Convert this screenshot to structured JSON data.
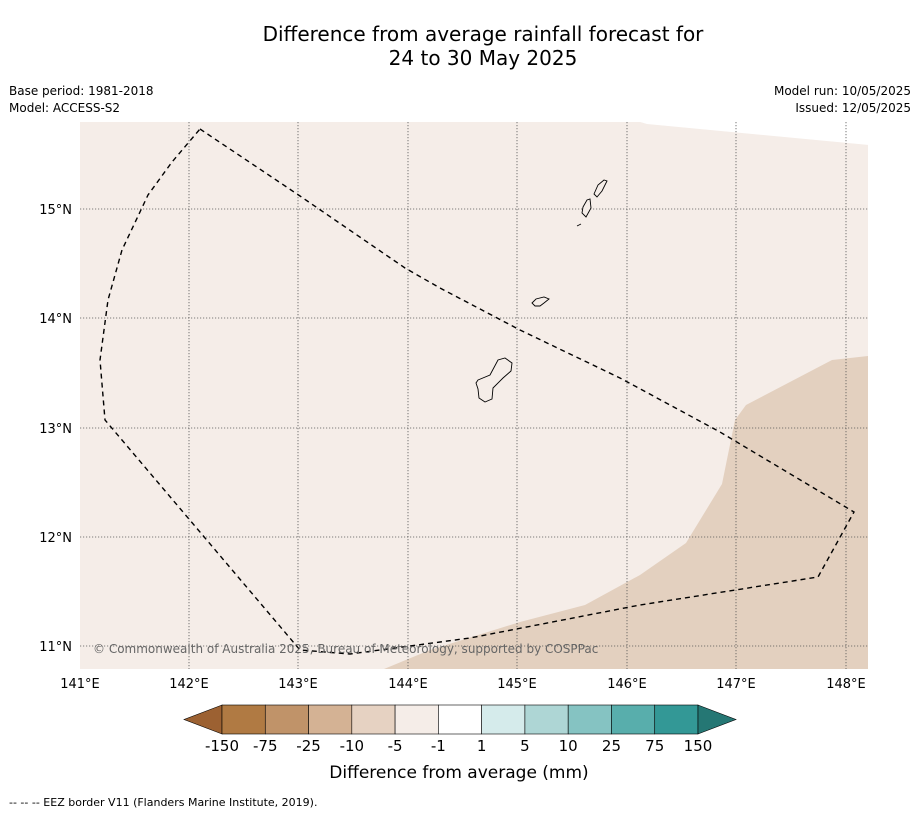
{
  "title": {
    "line1": "Difference from average rainfall forecast for",
    "line2": "24 to 30 May 2025"
  },
  "meta_left": {
    "base_period": "Base period: 1981-2018",
    "model": "Model: ACCESS-S2"
  },
  "meta_right": {
    "model_run": "Model run: 10/05/2025",
    "issued": "Issued: 12/05/2025"
  },
  "map": {
    "lon_labels": [
      "141°E",
      "142°E",
      "143°E",
      "144°E",
      "145°E",
      "146°E",
      "147°E",
      "148°E"
    ],
    "lat_labels": [
      "15°N",
      "14°N",
      "13°N",
      "12°N",
      "11°N"
    ],
    "copyright": "© Commonwealth of Australia 2025, Bureau of Meteorology, supported by COSPPac",
    "colors": {
      "background_class": "#f5ede8",
      "drier_class": "#e3d0bf"
    }
  },
  "colorbar": {
    "ticks": [
      "-150",
      "-75",
      "-25",
      "-10",
      "-5",
      "-1",
      "1",
      "5",
      "10",
      "25",
      "75",
      "150"
    ],
    "colors": [
      "#9c6132",
      "#b07a43",
      "#c09369",
      "#d4b294",
      "#e6d2c2",
      "#f5ede8",
      "#ffffff",
      "#d5ebeb",
      "#aed6d5",
      "#85c3c2",
      "#58aeac",
      "#339896",
      "#257774"
    ],
    "label": "Difference from average (mm)"
  },
  "footer": "--  --  -- EEZ border V11 (Flanders Marine Institute, 2019)."
}
